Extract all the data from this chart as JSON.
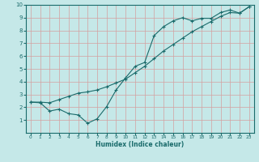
{
  "xlabel": "Humidex (Indice chaleur)",
  "ylabel": "",
  "bg_color": "#c5e8e8",
  "line_color": "#1a6b6b",
  "grid_color": "#b0d8d8",
  "xlim": [
    -0.5,
    23.5
  ],
  "ylim": [
    0,
    10
  ],
  "xticks": [
    0,
    1,
    2,
    3,
    4,
    5,
    6,
    7,
    8,
    9,
    10,
    11,
    12,
    13,
    14,
    15,
    16,
    17,
    18,
    19,
    20,
    21,
    22,
    23
  ],
  "yticks": [
    1,
    2,
    3,
    4,
    5,
    6,
    7,
    8,
    9,
    10
  ],
  "line1_x": [
    0,
    1,
    2,
    3,
    4,
    5,
    6,
    7,
    8,
    9,
    10,
    11,
    12,
    13,
    14,
    15,
    16,
    17,
    18,
    19,
    20,
    21,
    22,
    23
  ],
  "line1_y": [
    2.4,
    2.4,
    2.35,
    2.6,
    2.85,
    3.1,
    3.2,
    3.35,
    3.6,
    3.9,
    4.2,
    4.7,
    5.2,
    5.8,
    6.4,
    6.9,
    7.4,
    7.9,
    8.3,
    8.7,
    9.1,
    9.4,
    9.35,
    9.85
  ],
  "line2_x": [
    0,
    1,
    2,
    3,
    4,
    5,
    6,
    7,
    8,
    9,
    10,
    11,
    12,
    13,
    14,
    15,
    16,
    17,
    18,
    19,
    20,
    21,
    22,
    23
  ],
  "line2_y": [
    2.4,
    2.35,
    1.7,
    1.85,
    1.5,
    1.4,
    0.75,
    1.1,
    2.05,
    3.35,
    4.3,
    5.2,
    5.5,
    7.6,
    8.3,
    8.75,
    9.0,
    8.75,
    8.95,
    8.95,
    9.4,
    9.6,
    9.35,
    9.85
  ]
}
